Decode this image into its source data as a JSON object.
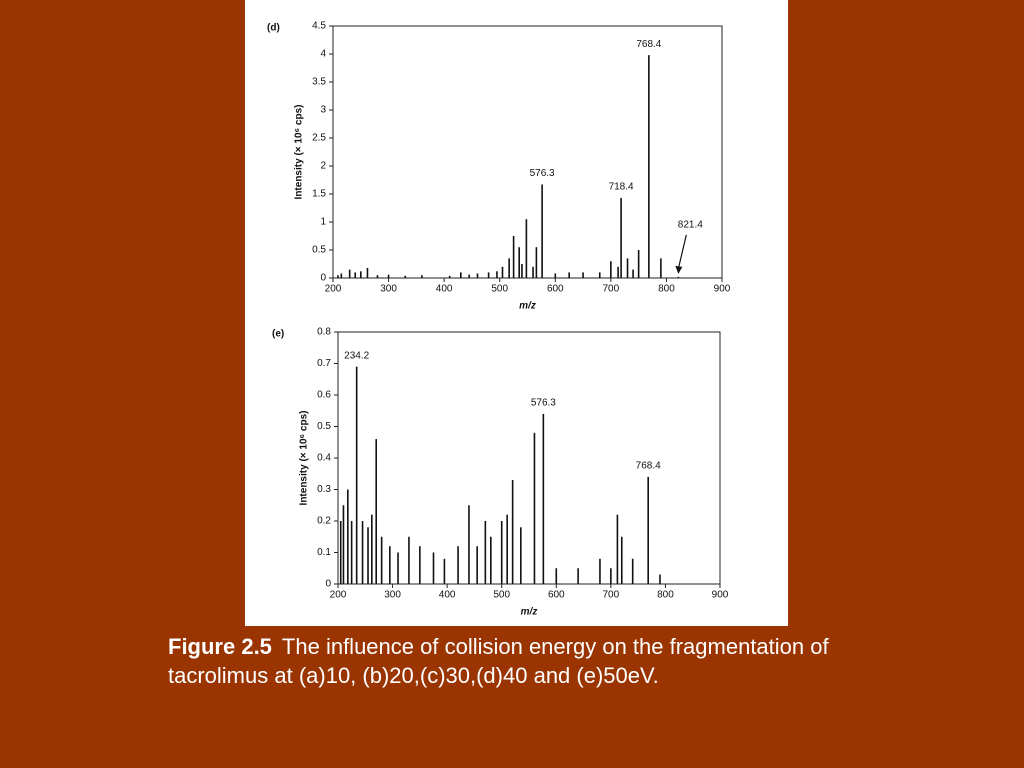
{
  "chart_data": [
    {
      "type": "bar",
      "panel_label": "(d)",
      "x_label": "m/z",
      "y_label": "Intensity (× 10⁶ cps)",
      "color": "#111111",
      "x": [
        209,
        215,
        230,
        240,
        250,
        262,
        280,
        300,
        330,
        360,
        410,
        430,
        445,
        460,
        480,
        495,
        505,
        517,
        525,
        535,
        540,
        548,
        560,
        566,
        576.3,
        600,
        625,
        650,
        680,
        700,
        713,
        718.4,
        730,
        740,
        750,
        768.4,
        790,
        821.4
      ],
      "values": [
        0.05,
        0.08,
        0.15,
        0.1,
        0.12,
        0.18,
        0.05,
        0.06,
        0.04,
        0.05,
        0.04,
        0.1,
        0.06,
        0.08,
        0.1,
        0.12,
        0.2,
        0.35,
        0.75,
        0.55,
        0.25,
        1.05,
        0.2,
        0.55,
        1.67,
        0.08,
        0.1,
        0.1,
        0.1,
        0.3,
        0.2,
        1.43,
        0.35,
        0.15,
        0.5,
        3.98,
        0.35,
        0.02
      ],
      "annotations": [
        {
          "label": "576.3",
          "x": 576.3,
          "y": 1.67
        },
        {
          "label": "718.4",
          "x": 718.4,
          "y": 1.43
        },
        {
          "label": "768.4",
          "x": 768.4,
          "y": 3.98
        },
        {
          "label": "821.4",
          "x": 821.4,
          "y": 0.02,
          "arrow": true
        }
      ],
      "xlim": [
        200,
        900
      ],
      "xticks": [
        200,
        300,
        400,
        500,
        600,
        700,
        800,
        900
      ],
      "ylim": [
        0,
        4.5
      ],
      "yticks": [
        0,
        0.5,
        1,
        1.5,
        2,
        2.5,
        3,
        3.5,
        4,
        4.5
      ]
    },
    {
      "type": "bar",
      "panel_label": "(e)",
      "x_label": "m/z",
      "y_label": "Intensity (× 10⁶ cps)",
      "color": "#111111",
      "x": [
        205,
        210,
        218,
        225,
        234.2,
        245,
        255,
        262,
        270,
        280,
        295,
        310,
        330,
        350,
        375,
        395,
        420,
        440,
        455,
        470,
        480,
        500,
        510,
        520,
        535,
        560,
        576.3,
        600,
        640,
        680,
        700,
        712,
        720,
        740,
        768.4,
        790
      ],
      "values": [
        0.2,
        0.25,
        0.3,
        0.2,
        0.69,
        0.2,
        0.18,
        0.22,
        0.46,
        0.15,
        0.12,
        0.1,
        0.15,
        0.12,
        0.1,
        0.08,
        0.12,
        0.25,
        0.12,
        0.2,
        0.15,
        0.2,
        0.22,
        0.33,
        0.18,
        0.48,
        0.54,
        0.05,
        0.05,
        0.08,
        0.05,
        0.22,
        0.15,
        0.08,
        0.34,
        0.03
      ],
      "annotations": [
        {
          "label": "234.2",
          "x": 234.2,
          "y": 0.69
        },
        {
          "label": "576.3",
          "x": 576.3,
          "y": 0.54
        },
        {
          "label": "768.4",
          "x": 768.4,
          "y": 0.34
        }
      ],
      "xlim": [
        200,
        900
      ],
      "xticks": [
        200,
        300,
        400,
        500,
        600,
        700,
        800,
        900
      ],
      "ylim": [
        0,
        0.8
      ],
      "yticks": [
        0,
        0.1,
        0.2,
        0.3,
        0.4,
        0.5,
        0.6,
        0.7,
        0.8
      ]
    }
  ],
  "caption": {
    "label": "Figure 2.5",
    "text": "The influence of collision energy on the fragmentation of tacrolimus at (a)10, (b)20,(c)30,(d)40 and (e)50eV."
  }
}
